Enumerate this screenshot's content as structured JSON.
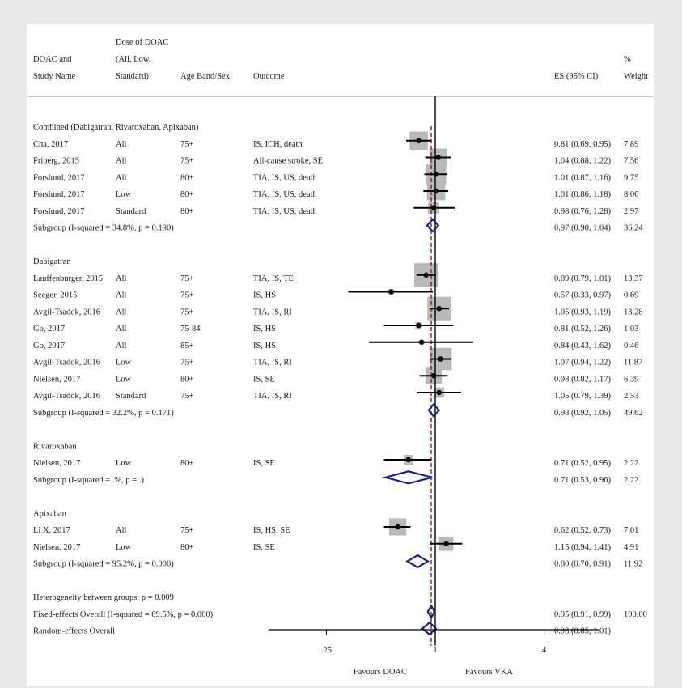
{
  "chart_data": {
    "type": "forest",
    "x_scale": "log",
    "xlim": [
      0.12,
      8
    ],
    "null_line": 1,
    "overall_es": 0.95,
    "x_ticks": [
      {
        "v": 0.25,
        "label": ".25"
      },
      {
        "v": 1,
        "label": "1"
      },
      {
        "v": 4,
        "label": "4"
      }
    ],
    "favours_left": "Favours DOAC",
    "favours_right": "Favours VKA",
    "header": {
      "doac_study": [
        "DOAC and",
        "Study Name"
      ],
      "dose": [
        "Dose of DOAC",
        "(All, Low,",
        "Standard)"
      ],
      "age": "Age Band/Sex",
      "outcome": "Outcome",
      "es": "ES (95% CI)",
      "weight": [
        "%",
        "Weight"
      ]
    },
    "rows": [
      {
        "kind": "group",
        "label": "Combined (Dabigatran, Rivaroxaban, Apixaban)"
      },
      {
        "kind": "study",
        "study": "Cha, 2017",
        "dose": "All",
        "age": "75+",
        "outcome": "IS, ICH, death",
        "es": 0.81,
        "lo": 0.69,
        "hi": 0.95,
        "es_text": "0.81 (0.69, 0.95)",
        "weight": 7.89,
        "weight_text": "7.89"
      },
      {
        "kind": "study",
        "study": "Friberg, 2015",
        "dose": "All",
        "age": "75+",
        "outcome": "All-cause stroke, SE",
        "es": 1.04,
        "lo": 0.88,
        "hi": 1.22,
        "es_text": "1.04 (0.88, 1.22)",
        "weight": 7.56,
        "weight_text": "7.56"
      },
      {
        "kind": "study",
        "study": "Forslund, 2017",
        "dose": "All",
        "age": "80+",
        "outcome": "TIA, IS, US, death",
        "es": 1.01,
        "lo": 0.87,
        "hi": 1.16,
        "es_text": "1.01 (0.87, 1.16)",
        "weight": 9.75,
        "weight_text": "9.75"
      },
      {
        "kind": "study",
        "study": "Forslund, 2017",
        "dose": "Low",
        "age": "80+",
        "outcome": "TIA, IS, US, death",
        "es": 1.01,
        "lo": 0.86,
        "hi": 1.18,
        "es_text": "1.01 (0.86, 1.18)",
        "weight": 8.06,
        "weight_text": "8.06"
      },
      {
        "kind": "study",
        "study": "Forslund, 2017",
        "dose": "Standard",
        "age": "80+",
        "outcome": "TIA, IS, US, death",
        "es": 0.98,
        "lo": 0.76,
        "hi": 1.28,
        "es_text": "0.98 (0.76, 1.28)",
        "weight": 2.97,
        "weight_text": "2.97"
      },
      {
        "kind": "subtotal",
        "label": "Subgroup (I-squared = 34.8%, p = 0.190)",
        "es": 0.97,
        "lo": 0.9,
        "hi": 1.04,
        "es_text": "0.97 (0.90, 1.04)",
        "weight_text": "36.24"
      },
      {
        "kind": "blank"
      },
      {
        "kind": "group",
        "label": "Dabigatran"
      },
      {
        "kind": "study",
        "study": "Lauffenburger, 2015",
        "dose": "All",
        "age": "75+",
        "outcome": "TIA, IS, TE",
        "es": 0.89,
        "lo": 0.79,
        "hi": 1.01,
        "es_text": "0.89 (0.79, 1.01)",
        "weight": 13.37,
        "weight_text": "13.37"
      },
      {
        "kind": "study",
        "study": "Seeger, 2015",
        "dose": "All",
        "age": "75+",
        "outcome": "IS, HS",
        "es": 0.57,
        "lo": 0.33,
        "hi": 0.97,
        "es_text": "0.57 (0.33, 0.97)",
        "weight": 0.69,
        "weight_text": "0.69"
      },
      {
        "kind": "study",
        "study": "Avgil-Tsadok, 2016",
        "dose": "All",
        "age": "75+",
        "outcome": "TIA, IS, RI",
        "es": 1.05,
        "lo": 0.93,
        "hi": 1.19,
        "es_text": "1.05 (0.93, 1.19)",
        "weight": 13.28,
        "weight_text": "13.28"
      },
      {
        "kind": "study",
        "study": "Go, 2017",
        "dose": "All",
        "age": "75-84",
        "outcome": "IS, HS",
        "es": 0.81,
        "lo": 0.52,
        "hi": 1.26,
        "es_text": "0.81 (0.52, 1.26)",
        "weight": 1.03,
        "weight_text": "1.03"
      },
      {
        "kind": "study",
        "study": "Go, 2017",
        "dose": "All",
        "age": "85+",
        "outcome": "IS, HS",
        "es": 0.84,
        "lo": 0.43,
        "hi": 1.62,
        "es_text": "0.84 (0.43, 1.62)",
        "weight": 0.46,
        "weight_text": "0.46"
      },
      {
        "kind": "study",
        "study": "Avgil-Tsadok, 2016",
        "dose": "Low",
        "age": "75+",
        "outcome": "TIA, IS, RI",
        "es": 1.07,
        "lo": 0.94,
        "hi": 1.22,
        "es_text": "1.07 (0.94, 1.22)",
        "weight": 11.87,
        "weight_text": "11.87"
      },
      {
        "kind": "study",
        "study": "Nielsen, 2017",
        "dose": "Low",
        "age": "80+",
        "outcome": "IS, SE",
        "es": 0.98,
        "lo": 0.82,
        "hi": 1.17,
        "es_text": "0.98 (0.82, 1.17)",
        "weight": 6.39,
        "weight_text": "6.39"
      },
      {
        "kind": "study",
        "study": "Avgil-Tsadok, 2016",
        "dose": "Standard",
        "age": "75+",
        "outcome": "TIA, IS, RI",
        "es": 1.05,
        "lo": 0.79,
        "hi": 1.39,
        "es_text": "1.05 (0.79, 1.39)",
        "weight": 2.53,
        "weight_text": "2.53"
      },
      {
        "kind": "subtotal",
        "label": "Subgroup (I-squared = 32.2%, p = 0.171)",
        "es": 0.98,
        "lo": 0.92,
        "hi": 1.05,
        "es_text": "0.98 (0.92, 1.05)",
        "weight_text": "49.62"
      },
      {
        "kind": "blank"
      },
      {
        "kind": "group",
        "label": "Rivaroxaban"
      },
      {
        "kind": "study",
        "study": "Nielsen, 2017",
        "dose": "Low",
        "age": "80+",
        "outcome": "IS, SE",
        "es": 0.71,
        "lo": 0.52,
        "hi": 0.95,
        "es_text": "0.71 (0.52, 0.95)",
        "weight": 2.22,
        "weight_text": "2.22"
      },
      {
        "kind": "subtotal",
        "label": "Subgroup (I-squared = .%, p = .)",
        "es": 0.71,
        "lo": 0.53,
        "hi": 0.96,
        "es_text": "0.71 (0.53, 0.96)",
        "weight_text": "2.22"
      },
      {
        "kind": "blank"
      },
      {
        "kind": "group",
        "label": "Apixaban"
      },
      {
        "kind": "study",
        "study": "Li X, 2017",
        "dose": "All",
        "age": "75+",
        "outcome": "IS, HS, SE",
        "es": 0.62,
        "lo": 0.52,
        "hi": 0.73,
        "es_text": "0.62 (0.52, 0.73)",
        "weight": 7.01,
        "weight_text": "7.01"
      },
      {
        "kind": "study",
        "study": "Nielsen, 2017",
        "dose": "Low",
        "age": "80+",
        "outcome": "IS, SE",
        "es": 1.15,
        "lo": 0.94,
        "hi": 1.41,
        "es_text": "1.15 (0.94, 1.41)",
        "weight": 4.91,
        "weight_text": "4.91"
      },
      {
        "kind": "subtotal",
        "label": "Subgroup (I-squared = 95.2%, p = 0.000)",
        "es": 0.8,
        "lo": 0.7,
        "hi": 0.91,
        "es_text": "0.80 (0.70, 0.91)",
        "weight_text": "11.92"
      },
      {
        "kind": "blank"
      },
      {
        "kind": "note",
        "label": "Heterogeneity between groups: p = 0.009"
      },
      {
        "kind": "subtotal",
        "label": "Fixed-effects Overall (I-squared = 69.5%, p = 0.000)",
        "es": 0.95,
        "lo": 0.91,
        "hi": 0.99,
        "es_text": "0.95 (0.91, 0.99)",
        "weight_text": "100.00"
      },
      {
        "kind": "subtotal",
        "label": "Random-effects Overall",
        "es": 0.93,
        "lo": 0.85,
        "hi": 1.01,
        "es_text": "0.93 (0.85, 1.01)",
        "weight_text": ""
      }
    ]
  },
  "colors": {
    "diamond": "#1a237e",
    "box": "#b9b9b9",
    "overall_line": "#8b1a1a",
    "text": "#1a1a1a",
    "background": "#e8e8e8",
    "panel": "#ffffff"
  }
}
